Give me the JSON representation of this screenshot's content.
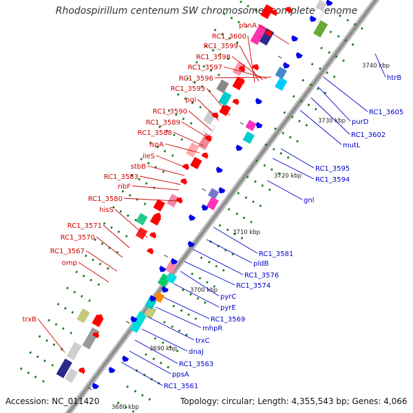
{
  "title": "Rhodospirillum centenum SW chromosome, complete genome",
  "footer": {
    "accession": "Accession: NC_011420",
    "summary": "Topology: circular; Length: 4,355,543 bp; Genes: 4,066"
  },
  "colors": {
    "forward_label": "#cc0000",
    "reverse_label": "#0000cc",
    "backbone": "#999999",
    "gene_forward": "#ff0000",
    "gene_reverse": "#0000ee",
    "tick": "#1a7a1a"
  },
  "ticks": [
    {
      "label": "3680 kbp"
    },
    {
      "label": "3690 kbp"
    },
    {
      "label": "3700 kbp"
    },
    {
      "label": "3710 kbp"
    },
    {
      "label": "3720 kbp"
    },
    {
      "label": "3730 kbp"
    },
    {
      "label": "3740 kbp"
    }
  ],
  "forward_labels": [
    "phnA",
    "RC1_3600",
    "RC1_3599",
    "RC1_3598",
    "RC1_3597",
    "RC1_3596",
    "RC1_3593",
    "pgi",
    "RC1_3590",
    "RC1_3589",
    "RC1_3588",
    "lspA",
    "ileS",
    "stbB",
    "RC1_3583",
    "ribF",
    "RC1_3580",
    "hisS",
    "RC1_3571",
    "RC1_3570",
    "RC1_3567",
    "omp",
    "trxB"
  ],
  "reverse_labels": [
    "htrB",
    "RC1_3605",
    "purD",
    "RC1_3602",
    "mutL",
    "RC1_3595",
    "RC1_3594",
    "gnl",
    "RC1_3581",
    "pldB",
    "RC1_3576",
    "RC1_3574",
    "pyrC",
    "pyrE",
    "RC1_3569",
    "mhpR",
    "trxC",
    "dnaJ",
    "RC1_3563",
    "ppsA",
    "RC1_3561"
  ]
}
